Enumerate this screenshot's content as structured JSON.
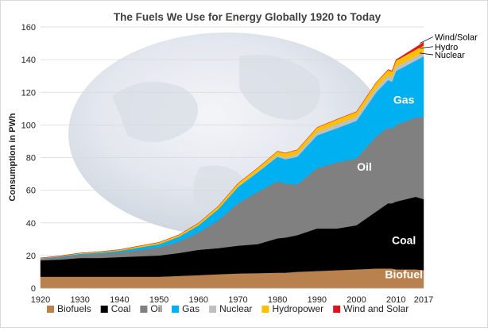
{
  "chart_data": {
    "type": "area",
    "stacked": true,
    "title": "The Fuels We Use for Energy Globally 1920 to Today",
    "ylabel": "Consumption in PWh",
    "xlabel": "",
    "xlim": [
      1920,
      2017
    ],
    "ylim": [
      0,
      160
    ],
    "xticks": [
      "1920",
      "1930",
      "1940",
      "1950",
      "1960",
      "1970",
      "1980",
      "1990",
      "2000",
      "2010",
      "2017"
    ],
    "yticks": [
      "0",
      "20",
      "40",
      "60",
      "80",
      "100",
      "120",
      "140",
      "160"
    ],
    "grid": "horizontal",
    "legend_position": "bottom",
    "background_image": "earth-globe",
    "x": [
      1920,
      1925,
      1930,
      1935,
      1940,
      1945,
      1950,
      1955,
      1960,
      1965,
      1970,
      1975,
      1980,
      1982,
      1985,
      1990,
      1995,
      2000,
      2005,
      2008,
      2009,
      2010,
      2015,
      2017
    ],
    "series": [
      {
        "name": "Biofuels",
        "color": "#b8814e",
        "values": [
          7,
          7,
          7,
          7,
          7,
          7,
          7,
          7.5,
          8,
          8.5,
          9,
          9.2,
          9.5,
          9.5,
          10,
          10.5,
          11,
          11.5,
          12,
          12,
          12,
          11.5,
          11.5,
          11
        ]
      },
      {
        "name": "Coal",
        "color": "#000000",
        "values": [
          10,
          10.5,
          11.5,
          11.5,
          12,
          12.5,
          13,
          14,
          15.5,
          16,
          17,
          17.8,
          21,
          21.5,
          22.5,
          26,
          25.5,
          27,
          35,
          40,
          40,
          41.5,
          44.5,
          43.5
        ]
      },
      {
        "name": "Oil",
        "color": "#808080",
        "values": [
          1,
          1.5,
          2,
          2.5,
          3,
          4,
          5,
          7,
          10.5,
          17,
          26,
          32,
          35,
          33,
          31,
          37,
          40.5,
          41,
          46,
          46.5,
          45.5,
          47,
          48.5,
          50.5
        ]
      },
      {
        "name": "Gas",
        "color": "#00b0f0",
        "values": [
          0.3,
          0.5,
          0.6,
          0.8,
          1,
          1.5,
          2,
          3,
          4.5,
          7,
          10,
          12,
          15,
          15,
          17,
          20,
          21,
          23,
          27,
          29,
          29,
          33,
          35,
          37
        ]
      },
      {
        "name": "Nuclear",
        "color": "#bfbfbf",
        "values": [
          0,
          0,
          0,
          0,
          0,
          0,
          0,
          0,
          0,
          0,
          0.2,
          0.5,
          1,
          1.2,
          1.6,
          2.2,
          2.5,
          2.6,
          2.8,
          2.8,
          2.7,
          2.7,
          2.6,
          2.6
        ]
      },
      {
        "name": "Hydropower",
        "color": "#ffc000",
        "values": [
          0.2,
          0.3,
          0.4,
          0.5,
          0.6,
          0.8,
          1,
          1.1,
          1.4,
          1.7,
          2,
          2.2,
          2.4,
          2.5,
          2.6,
          2.7,
          2.9,
          3,
          3.2,
          3.4,
          3.5,
          3.7,
          4,
          4.1
        ]
      },
      {
        "name": "Wind and Solar",
        "color": "#e0141e",
        "values": [
          0,
          0,
          0,
          0,
          0,
          0,
          0,
          0,
          0,
          0,
          0,
          0,
          0,
          0,
          0,
          0,
          0,
          0,
          0.1,
          0.3,
          0.4,
          0.5,
          1.5,
          2
        ]
      }
    ],
    "annotations": [
      {
        "text": "Biofuel",
        "series": "Biofuels",
        "color": "#ffffff",
        "x": 2012,
        "y": 6
      },
      {
        "text": "Coal",
        "series": "Coal",
        "color": "#ffffff",
        "x": 2012,
        "y": 27
      },
      {
        "text": "Oil",
        "series": "Oil",
        "color": "#ffffff",
        "x": 2002,
        "y": 72
      },
      {
        "text": "Gas",
        "series": "Gas",
        "color": "#ffffff",
        "x": 2012,
        "y": 113
      },
      {
        "text": "Nuclear",
        "series": "Nuclear",
        "color": "#000000",
        "x": 2019,
        "y": 141,
        "target": [
          2016,
          144
        ]
      },
      {
        "text": "Hydro",
        "series": "Hydropower",
        "color": "#000000",
        "x": 2019,
        "y": 146,
        "target": [
          2016,
          147
        ]
      },
      {
        "text": "Wind/Solar",
        "series": "Wind and Solar",
        "color": "#000000",
        "x": 2019,
        "y": 152,
        "target": [
          2016,
          150
        ]
      }
    ]
  }
}
